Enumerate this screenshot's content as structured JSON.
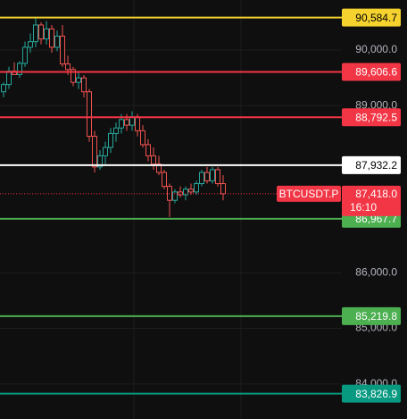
{
  "chart_data": {
    "type": "candlestick",
    "symbol": "BTCUSDT.P",
    "countdown": "16:10",
    "ylim": [
      83371,
      90899
    ],
    "yticks": [
      {
        "value": 84000,
        "label": "84,000.0"
      },
      {
        "value": 85000,
        "label": "85,000.0"
      },
      {
        "value": 86000,
        "label": "86,000.0"
      },
      {
        "value": 89000,
        "label": "89,000.0"
      },
      {
        "value": 90000,
        "label": "90,000.0"
      }
    ],
    "grid": true,
    "up_color": "#26a69a",
    "down_color": "#ef5350",
    "open": [
      89250,
      89380,
      89620,
      89560,
      89760,
      90050,
      90150,
      90450,
      90200,
      90380,
      90050,
      90250,
      89750,
      89650,
      89420,
      89500,
      89250,
      88450,
      87900,
      88100,
      88250,
      88500,
      88600,
      88750,
      88650,
      88800,
      88550,
      88300,
      88100,
      87950,
      87800,
      87550,
      87300,
      87450,
      87400,
      87500,
      87450,
      87600,
      87800,
      87650,
      87850,
      87600
    ],
    "high": [
      89420,
      89700,
      89780,
      89800,
      90150,
      90300,
      90580,
      90500,
      90520,
      90450,
      90350,
      90450,
      89900,
      89700,
      89600,
      89550,
      89300,
      88550,
      88200,
      88350,
      88600,
      88700,
      88850,
      88850,
      88900,
      88850,
      88650,
      88400,
      88250,
      88100,
      87850,
      87600,
      87500,
      87550,
      87550,
      87600,
      87650,
      87850,
      87900,
      87900,
      87900,
      87750
    ],
    "low": [
      89150,
      89300,
      89550,
      89500,
      89700,
      89950,
      90050,
      90100,
      90100,
      89950,
      89980,
      89700,
      89550,
      89350,
      89300,
      89150,
      88350,
      87800,
      87850,
      87950,
      88150,
      88350,
      88500,
      88550,
      88550,
      88450,
      88250,
      88000,
      87850,
      87750,
      87500,
      87000,
      87250,
      87350,
      87300,
      87400,
      87400,
      87550,
      87600,
      87600,
      87550,
      87300
    ],
    "close": [
      89380,
      89620,
      89560,
      89760,
      90050,
      90150,
      90450,
      90200,
      90380,
      90050,
      90250,
      89750,
      89650,
      89420,
      89500,
      89250,
      88450,
      87900,
      88100,
      88250,
      88500,
      88600,
      88750,
      88650,
      88800,
      88550,
      88300,
      88100,
      87950,
      87800,
      87550,
      87300,
      87450,
      87400,
      87500,
      87450,
      87600,
      87800,
      87650,
      87850,
      87600,
      87418
    ],
    "current_price": {
      "value": 87418.0,
      "label": "87,418.0",
      "color": "#f23645"
    },
    "levels": [
      {
        "value": 90584.7,
        "label": "90,584.7",
        "color": "#f5d22e",
        "text_color": "#000000"
      },
      {
        "value": 89606.6,
        "label": "89,606.6",
        "color": "#f23645",
        "text_color": "#ffffff"
      },
      {
        "value": 88792.5,
        "label": "88,792.5",
        "color": "#f23645",
        "text_color": "#ffffff"
      },
      {
        "value": 87932.2,
        "label": "87,932.2",
        "color": "#ffffff",
        "text_color": "#000000"
      },
      {
        "value": 86967.7,
        "label": "86,967.7",
        "color": "#4caf50",
        "text_color": "#ffffff"
      },
      {
        "value": 85219.8,
        "label": "85,219.8",
        "color": "#4caf50",
        "text_color": "#ffffff"
      },
      {
        "value": 83826.9,
        "label": "83,826.9",
        "color": "#089981",
        "text_color": "#ffffff"
      }
    ]
  }
}
